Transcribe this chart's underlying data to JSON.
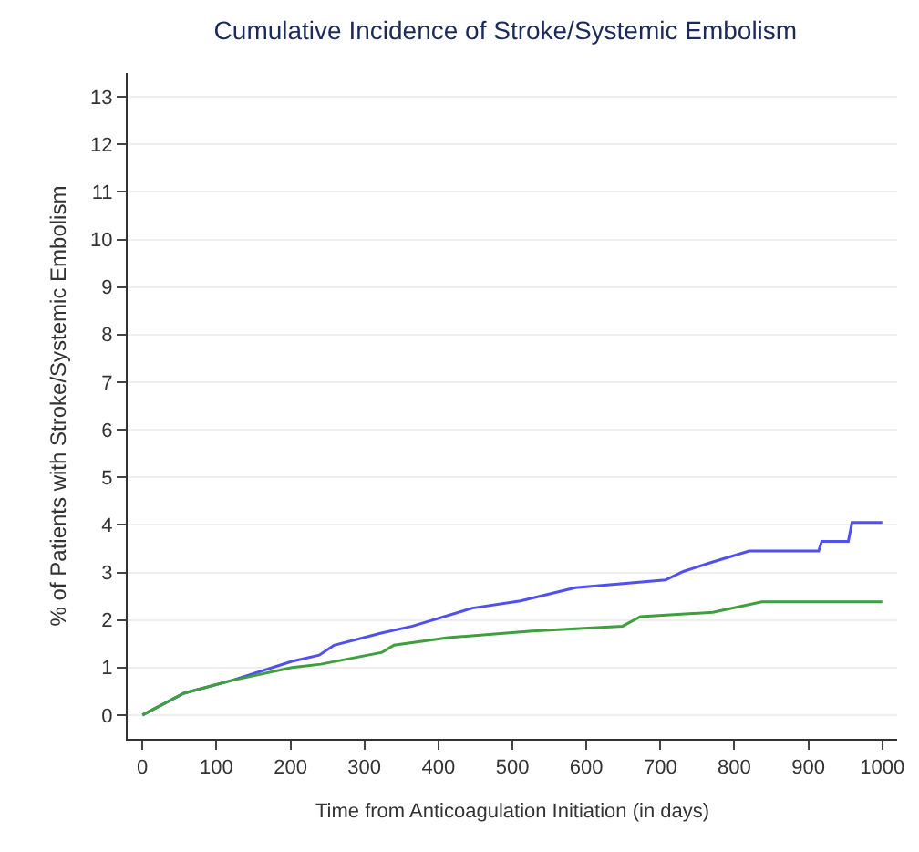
{
  "chart_data": {
    "type": "line",
    "title": "Cumulative Incidence of Stroke/Systemic Embolism",
    "xlabel": "Time from Anticoagulation Initiation (in days)",
    "ylabel": "% of Patients with Stroke/Systemic Embolism",
    "series": [
      {
        "color": "#5050f0",
        "x": [
          0,
          56,
          121,
          202,
          239,
          259,
          324,
          365,
          446,
          511,
          585,
          707,
          731,
          771,
          820,
          914,
          918,
          954,
          959,
          1000
        ],
        "values": [
          0,
          0.46,
          0.73,
          1.13,
          1.26,
          1.47,
          1.73,
          1.87,
          2.25,
          2.4,
          2.68,
          2.84,
          3.02,
          3.22,
          3.45,
          3.45,
          3.65,
          3.65,
          4.05,
          4.05
        ]
      },
      {
        "color": "#3f9f3f",
        "x": [
          0,
          56,
          121,
          202,
          241,
          324,
          340,
          413,
          527,
          649,
          673,
          771,
          837,
          1000
        ],
        "values": [
          0,
          0.46,
          0.73,
          1.0,
          1.07,
          1.32,
          1.47,
          1.63,
          1.77,
          1.87,
          2.07,
          2.16,
          2.38,
          2.38
        ]
      }
    ],
    "xlim": [
      -20,
      1020
    ],
    "xticks": [
      0,
      100,
      200,
      300,
      400,
      500,
      600,
      700,
      800,
      900,
      1000
    ],
    "ylim": [
      -0.5,
      13.5
    ],
    "yticks": [
      0,
      1,
      2,
      3,
      4,
      5,
      6,
      7,
      8,
      9,
      10,
      11,
      12,
      13
    ],
    "grid": "y",
    "line_style": "solid",
    "marker": "none"
  }
}
